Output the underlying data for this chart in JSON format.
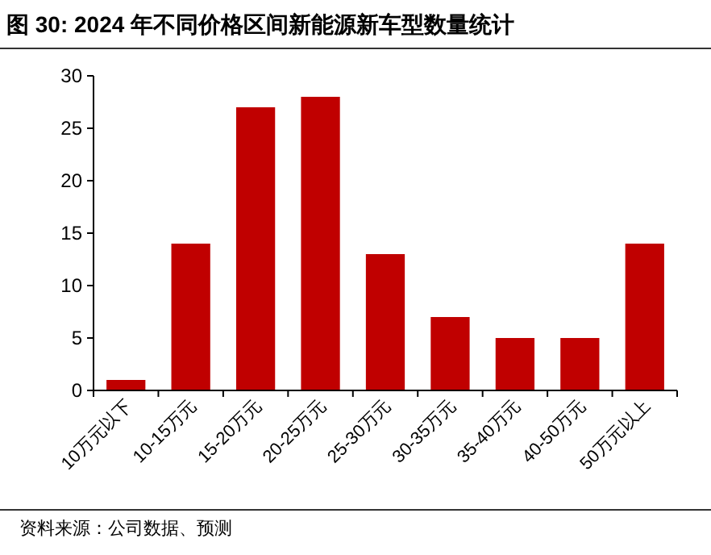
{
  "chart_data": {
    "type": "bar",
    "title": "图 30: 2024 年不同价格区间新能源新车型数量统计",
    "categories": [
      "10万元以下",
      "10-15万元",
      "15-20万元",
      "20-25万元",
      "25-30万元",
      "30-35万元",
      "35-40万元",
      "40-50万元",
      "50万元以上"
    ],
    "values": [
      1,
      14,
      27,
      28,
      13,
      7,
      5,
      5,
      14
    ],
    "color": "#c00000",
    "ylim": [
      0,
      30
    ],
    "yticks": [
      0,
      5,
      10,
      15,
      20,
      25,
      30
    ],
    "grid": false,
    "annotations": [
      "资料来源：公司数据、预测"
    ]
  }
}
